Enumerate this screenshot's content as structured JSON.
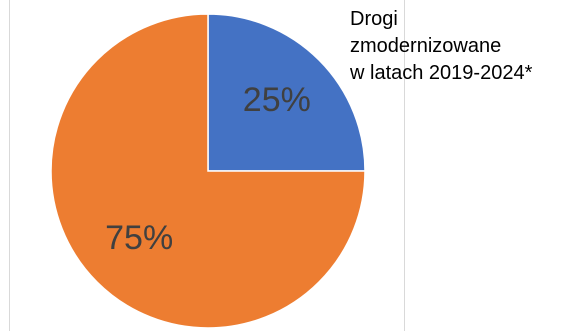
{
  "chart_data": {
    "type": "pie",
    "title": "Drogi zmodernizowane w latach 2019-2024*",
    "title_lines": [
      "Drogi",
      "zmodernizowane",
      "w latach 2019-2024*"
    ],
    "slices": [
      {
        "value": 25,
        "label": "25%",
        "color": "#4472C4"
      },
      {
        "value": 75,
        "label": "75%",
        "color": "#ED7D31"
      }
    ],
    "start_angle_deg": 0,
    "direction": "clockwise"
  }
}
